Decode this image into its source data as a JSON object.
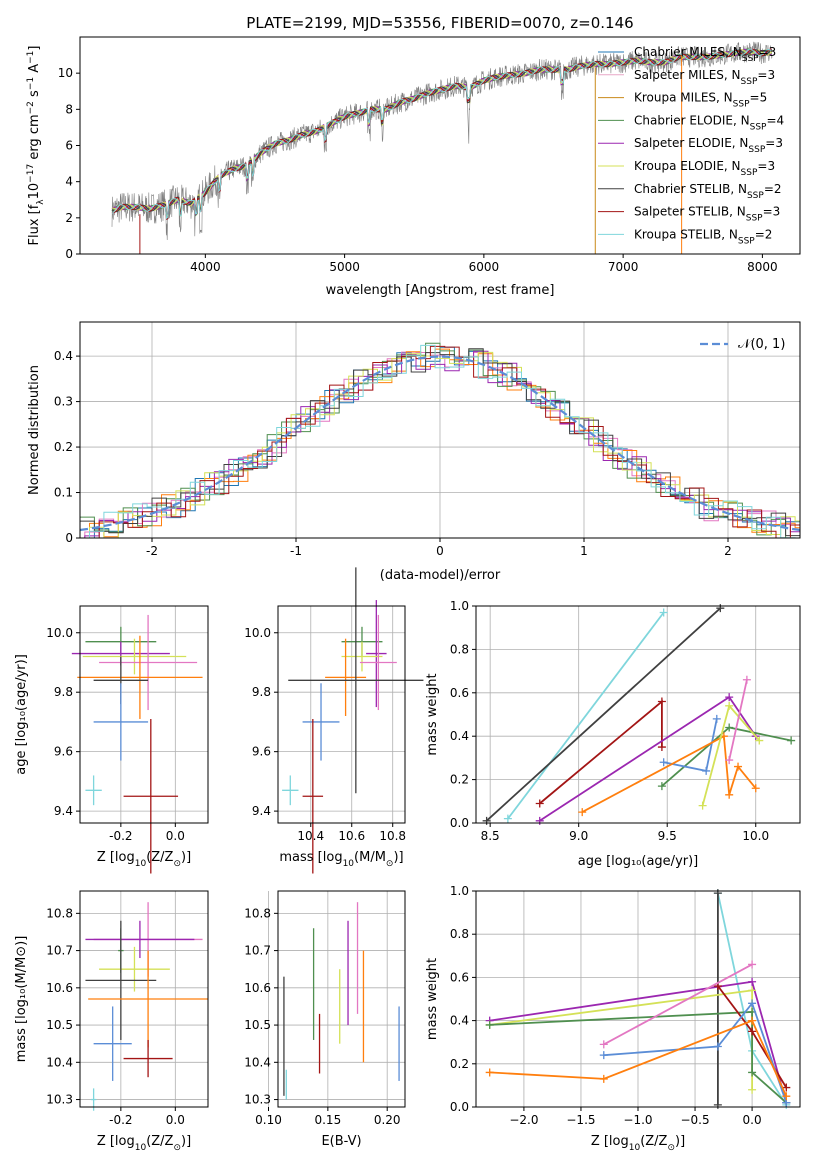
{
  "chart_data": [
    {
      "type": "line",
      "id": "spectrum",
      "title": "PLATE=2199, MJD=53556, FIBERID=0070, z=0.146",
      "xlabel": "wavelength [Angstrom, rest frame]",
      "ylabel_pre": "Flux [f",
      "ylabel_sub": "λ",
      "ylabel_mid": "10",
      "ylabel_sup": "−17",
      "ylabel_post": " erg cm",
      "ylabel_sup2": "−2",
      "ylabel_tail": " s",
      "ylabel_sup3": "−1",
      "ylabel_end": " A",
      "ylabel_sup4": "−1",
      "ylabel_close": "]",
      "xlim": [
        3100,
        8270
      ],
      "ylim": [
        0,
        12
      ],
      "xticks": [
        4000,
        5000,
        6000,
        7000,
        8000
      ],
      "yticks": [
        0,
        2,
        4,
        6,
        8,
        10
      ],
      "legend_placement": "top-right",
      "observed_color": "#7f7f7f",
      "continuum": [
        [
          3330,
          2.4
        ],
        [
          3400,
          2.6
        ],
        [
          3500,
          2.6
        ],
        [
          3600,
          2.5
        ],
        [
          3700,
          2.7
        ],
        [
          3800,
          3.0
        ],
        [
          3900,
          2.8
        ],
        [
          4000,
          3.4
        ],
        [
          4100,
          4.3
        ],
        [
          4200,
          4.7
        ],
        [
          4300,
          4.9
        ],
        [
          4400,
          5.6
        ],
        [
          4500,
          6.1
        ],
        [
          4600,
          6.3
        ],
        [
          4700,
          6.6
        ],
        [
          4800,
          6.8
        ],
        [
          4900,
          7.2
        ],
        [
          5000,
          7.6
        ],
        [
          5100,
          7.8
        ],
        [
          5200,
          8.0
        ],
        [
          5300,
          8.0
        ],
        [
          5400,
          8.4
        ],
        [
          5500,
          8.6
        ],
        [
          5600,
          8.9
        ],
        [
          5700,
          9.1
        ],
        [
          5800,
          9.3
        ],
        [
          5900,
          9.2
        ],
        [
          6000,
          9.6
        ],
        [
          6100,
          9.8
        ],
        [
          6200,
          9.9
        ],
        [
          6300,
          10.0
        ],
        [
          6400,
          10.2
        ],
        [
          6500,
          10.2
        ],
        [
          6600,
          10.2
        ],
        [
          6700,
          10.4
        ],
        [
          6800,
          10.5
        ],
        [
          6900,
          10.5
        ],
        [
          7000,
          10.6
        ],
        [
          7100,
          10.7
        ],
        [
          7200,
          10.6
        ],
        [
          7300,
          10.6
        ],
        [
          7400,
          10.9
        ],
        [
          7500,
          10.9
        ],
        [
          7600,
          10.9
        ],
        [
          7700,
          11.0
        ],
        [
          7800,
          11.1
        ],
        [
          7900,
          11.2
        ],
        [
          8000,
          11.1
        ],
        [
          8070,
          11.2
        ]
      ],
      "series": [
        {
          "name_a": "Chabrier MILES, N",
          "name_sub": "SSP",
          "name_b": "=3",
          "color": "#1f77b4"
        },
        {
          "name_a": "Salpeter MILES, N",
          "name_sub": "SSP",
          "name_b": "=3",
          "color": "#e8a7c7"
        },
        {
          "name_a": "Kroupa MILES, N",
          "name_sub": "SSP",
          "name_b": "=5",
          "color": "#c98a1a"
        },
        {
          "name_a": "Chabrier ELODIE, N",
          "name_sub": "SSP",
          "name_b": "=4",
          "color": "#4f8f4f"
        },
        {
          "name_a": "Salpeter ELODIE, N",
          "name_sub": "SSP",
          "name_b": "=3",
          "color": "#9b27b0"
        },
        {
          "name_a": "Kroupa ELODIE, N",
          "name_sub": "SSP",
          "name_b": "=3",
          "color": "#d4e157"
        },
        {
          "name_a": "Chabrier STELIB, N",
          "name_sub": "SSP",
          "name_b": "=2",
          "color": "#404040"
        },
        {
          "name_a": "Salpeter STELIB, N",
          "name_sub": "SSP",
          "name_b": "=3",
          "color": "#a31515"
        },
        {
          "name_a": "Kroupa STELIB, N",
          "name_sub": "SSP",
          "name_b": "=2",
          "color": "#7fd6dc"
        }
      ]
    },
    {
      "type": "line",
      "id": "residuals",
      "xlabel": "(data-model)/error",
      "ylabel": "Normed distribution",
      "xlim": [
        -2.5,
        2.5
      ],
      "ylim": [
        0,
        0.475
      ],
      "xticks": [
        -2,
        -1,
        0,
        1,
        2
      ],
      "yticks": [
        0.0,
        0.1,
        0.2,
        0.3,
        0.4
      ],
      "grid": true,
      "legend_placement": "top-right",
      "gaussian_label": "𝒩(0, 1)",
      "gaussian_color": "#5b8dd6",
      "histogram_colors": [
        "#1f77b4",
        "#e377c2",
        "#ff7f0e",
        "#4f8f4f",
        "#9b27b0",
        "#d4e157",
        "#404040",
        "#a31515",
        "#7fd6dc"
      ]
    },
    {
      "type": "scatter",
      "id": "z-age",
      "xlabel": "Z [log",
      "xlabel_sub": "10",
      "xlabel_tail": "(Z/Z",
      "xlabel_sub2": "⊙",
      "xlabel_close": ")]",
      "ylabel": "age  [log₁₀(age/yr)]",
      "xlim": [
        -0.35,
        0.12
      ],
      "ylim": [
        9.36,
        10.09
      ],
      "xticks": [
        "-0.2",
        "0.0"
      ],
      "yticks": [
        "9.4",
        "9.6",
        "9.8",
        "10.0"
      ],
      "points": [
        {
          "x": -0.2,
          "y": 9.97,
          "xerr": 0.13,
          "yerr": 0.05,
          "color": "#4f8f4f"
        },
        {
          "x": -0.2,
          "y": 9.93,
          "xerr": 0.18,
          "yerr": 0.04,
          "color": "#9b27b0"
        },
        {
          "x": -0.15,
          "y": 9.92,
          "xerr": 0.19,
          "yerr": 0.06,
          "color": "#d4e157"
        },
        {
          "x": -0.1,
          "y": 9.9,
          "xerr": 0.18,
          "yerr": 0.16,
          "color": "#e377c2"
        },
        {
          "x": -0.13,
          "y": 9.85,
          "xerr": 0.23,
          "yerr": 0.14,
          "color": "#ff7f0e"
        },
        {
          "x": -0.2,
          "y": 9.84,
          "xerr": 0.1,
          "yerr": 0.08,
          "color": "#404040"
        },
        {
          "x": -0.2,
          "y": 9.7,
          "xerr": 0.1,
          "yerr": 0.13,
          "color": "#5b8dd6"
        },
        {
          "x": -0.09,
          "y": 9.45,
          "xerr": 0.1,
          "yerr": 0.26,
          "color": "#a31515"
        },
        {
          "x": -0.3,
          "y": 9.47,
          "xerr": 0.03,
          "yerr": 0.05,
          "color": "#7fd6dc"
        }
      ]
    },
    {
      "type": "scatter",
      "id": "mass-age",
      "xlabel": "mass [log",
      "xlabel_sub": "10",
      "xlabel_tail": "(M/M",
      "xlabel_sub2": "⊙",
      "xlabel_close": ")]",
      "xlim": [
        10.24,
        10.86
      ],
      "ylim": [
        9.36,
        10.09
      ],
      "xticks": [
        "10.4",
        "10.6",
        "10.8"
      ],
      "yticks": [
        "9.4",
        "9.6",
        "9.8",
        "10.0"
      ],
      "points": [
        {
          "x": 10.65,
          "y": 9.97,
          "xerr": 0.1,
          "yerr": 0.05,
          "color": "#4f8f4f"
        },
        {
          "x": 10.72,
          "y": 9.93,
          "xerr": 0.05,
          "yerr": 0.18,
          "color": "#9b27b0"
        },
        {
          "x": 10.65,
          "y": 9.92,
          "xerr": 0.1,
          "yerr": 0.05,
          "color": "#d4e157"
        },
        {
          "x": 10.73,
          "y": 9.9,
          "xerr": 0.09,
          "yerr": 0.16,
          "color": "#e377c2"
        },
        {
          "x": 10.57,
          "y": 9.85,
          "xerr": 0.1,
          "yerr": 0.13,
          "color": "#ff7f0e"
        },
        {
          "x": 10.62,
          "y": 9.84,
          "xerr": 0.33,
          "yerr": 0.38,
          "color": "#404040"
        },
        {
          "x": 10.45,
          "y": 9.7,
          "xerr": 0.09,
          "yerr": 0.13,
          "color": "#5b8dd6"
        },
        {
          "x": 10.41,
          "y": 9.45,
          "xerr": 0.05,
          "yerr": 0.26,
          "color": "#a31515"
        },
        {
          "x": 10.3,
          "y": 9.47,
          "xerr": 0.04,
          "yerr": 0.05,
          "color": "#7fd6dc"
        }
      ]
    },
    {
      "type": "line",
      "id": "age-weight",
      "xlabel": "age  [log₁₀(age/yr)]",
      "ylabel": "mass weight",
      "xlim": [
        8.42,
        10.25
      ],
      "ylim": [
        0,
        1
      ],
      "xticks": [
        "8.5",
        "9.0",
        "9.5",
        "10.0"
      ],
      "yticks": [
        "0.0",
        "0.2",
        "0.4",
        "0.6",
        "0.8",
        "1.0"
      ],
      "grid": true,
      "series": [
        {
          "color": "#7fd6dc",
          "points": [
            [
              8.6,
              0.02
            ],
            [
              9.48,
              0.97
            ]
          ]
        },
        {
          "color": "#404040",
          "points": [
            [
              8.48,
              0.01
            ],
            [
              9.8,
              0.99
            ]
          ]
        },
        {
          "color": "#a31515",
          "points": [
            [
              8.78,
              0.09
            ],
            [
              9.47,
              0.56
            ],
            [
              9.47,
              0.35
            ]
          ]
        },
        {
          "color": "#9b27b0",
          "points": [
            [
              8.78,
              0.01
            ],
            [
              9.85,
              0.58
            ],
            [
              10.0,
              0.4
            ]
          ]
        },
        {
          "color": "#4f8f4f",
          "points": [
            [
              9.47,
              0.17
            ],
            [
              9.85,
              0.44
            ],
            [
              10.2,
              0.38
            ]
          ]
        },
        {
          "color": "#5b8dd6",
          "points": [
            [
              9.48,
              0.28
            ],
            [
              9.72,
              0.24
            ],
            [
              9.78,
              0.48
            ]
          ]
        },
        {
          "color": "#ff7f0e",
          "points": [
            [
              9.02,
              0.05
            ],
            [
              9.82,
              0.4
            ],
            [
              9.85,
              0.13
            ],
            [
              9.9,
              0.26
            ],
            [
              10.0,
              0.16
            ]
          ]
        },
        {
          "color": "#d4e157",
          "points": [
            [
              9.7,
              0.08
            ],
            [
              9.85,
              0.54
            ],
            [
              10.02,
              0.38
            ]
          ]
        },
        {
          "color": "#e377c2",
          "points": [
            [
              9.85,
              0.29
            ],
            [
              9.95,
              0.66
            ]
          ]
        }
      ]
    },
    {
      "type": "scatter",
      "id": "z-mass",
      "xlabel": "Z [log",
      "xlabel_sub": "10",
      "xlabel_tail": "(Z/Z",
      "xlabel_sub2": "⊙",
      "xlabel_close": ")]",
      "ylabel": "mass [log₁₀(M/M⊙)]",
      "xlim": [
        -0.35,
        0.12
      ],
      "ylim": [
        10.28,
        10.86
      ],
      "xticks": [
        "-0.2",
        "0.0"
      ],
      "yticks": [
        "10.3",
        "10.4",
        "10.5",
        "10.6",
        "10.7",
        "10.8"
      ],
      "points": [
        {
          "x": -0.1,
          "y": 10.73,
          "xerr": 0.2,
          "yerr": 0.1,
          "color": "#e377c2"
        },
        {
          "x": -0.13,
          "y": 10.73,
          "xerr": 0.2,
          "yerr": 0.05,
          "color": "#9b27b0"
        },
        {
          "x": -0.2,
          "y": 10.7,
          "xerr": 0.01,
          "yerr": 0.06,
          "color": "#4f8f4f"
        },
        {
          "x": -0.15,
          "y": 10.65,
          "xerr": 0.13,
          "yerr": 0.06,
          "color": "#d4e157"
        },
        {
          "x": -0.2,
          "y": 10.62,
          "xerr": 0.13,
          "yerr": 0.16,
          "color": "#404040"
        },
        {
          "x": -0.1,
          "y": 10.57,
          "xerr": 0.22,
          "yerr": 0.13,
          "color": "#ff7f0e"
        },
        {
          "x": -0.23,
          "y": 10.45,
          "xerr": 0.07,
          "yerr": 0.1,
          "color": "#5b8dd6"
        },
        {
          "x": -0.1,
          "y": 10.41,
          "xerr": 0.09,
          "yerr": 0.05,
          "color": "#a31515"
        },
        {
          "x": -0.3,
          "y": 10.3,
          "xerr": 0.01,
          "yerr": 0.03,
          "color": "#7fd6dc"
        }
      ]
    },
    {
      "type": "scatter",
      "id": "ebv-mass",
      "xlabel": "E(B-V)",
      "xlim": [
        0.108,
        0.215
      ],
      "ylim": [
        10.28,
        10.86
      ],
      "xticks": [
        "0.10",
        "0.15",
        "0.20"
      ],
      "yticks": [
        "10.3",
        "10.4",
        "10.5",
        "10.6",
        "10.7",
        "10.8"
      ],
      "points": [
        {
          "x": 0.113,
          "y": 10.47,
          "yerr": 0.16,
          "color": "#404040"
        },
        {
          "x": 0.115,
          "y": 10.34,
          "yerr": 0.04,
          "color": "#7fd6dc"
        },
        {
          "x": 0.138,
          "y": 10.61,
          "yerr": 0.15,
          "color": "#4f8f4f"
        },
        {
          "x": 0.143,
          "y": 10.45,
          "yerr": 0.08,
          "color": "#a31515"
        },
        {
          "x": 0.16,
          "y": 10.55,
          "yerr": 0.1,
          "color": "#d4e157"
        },
        {
          "x": 0.167,
          "y": 10.64,
          "yerr": 0.14,
          "color": "#9b27b0"
        },
        {
          "x": 0.175,
          "y": 10.68,
          "yerr": 0.15,
          "color": "#e377c2"
        },
        {
          "x": 0.18,
          "y": 10.55,
          "yerr": 0.15,
          "color": "#ff7f0e"
        },
        {
          "x": 0.21,
          "y": 10.45,
          "yerr": 0.1,
          "color": "#5b8dd6"
        }
      ]
    },
    {
      "type": "line",
      "id": "z-weight",
      "xlabel": "Z [log",
      "xlabel_sub": "10",
      "xlabel_tail": "(Z/Z",
      "xlabel_sub2": "⊙",
      "xlabel_close": ")]",
      "ylabel": "mass weight",
      "xlim": [
        -2.42,
        0.42
      ],
      "ylim": [
        0,
        1
      ],
      "xticks": [
        "−2.0",
        "−1.5",
        "−1.0",
        "−0.5",
        "0.0"
      ],
      "yticks": [
        "0.0",
        "0.2",
        "0.4",
        "0.6",
        "0.8",
        "1.0"
      ],
      "grid": true,
      "series": [
        {
          "color": "#7fd6dc",
          "points": [
            [
              -0.3,
              0.99
            ],
            [
              0.0,
              0.26
            ],
            [
              0.3,
              0.01
            ]
          ]
        },
        {
          "color": "#404040",
          "points": [
            [
              -0.3,
              0.99
            ],
            [
              -0.3,
              0.01
            ]
          ]
        },
        {
          "color": "#9b27b0",
          "points": [
            [
              -2.3,
              0.4
            ],
            [
              0.0,
              0.58
            ],
            [
              0.3,
              0.02
            ]
          ]
        },
        {
          "color": "#d4e157",
          "points": [
            [
              -2.3,
              0.38
            ],
            [
              0.0,
              0.54
            ],
            [
              0.0,
              0.08
            ]
          ]
        },
        {
          "color": "#4f8f4f",
          "points": [
            [
              -2.3,
              0.38
            ],
            [
              0.0,
              0.44
            ],
            [
              0.0,
              0.16
            ],
            [
              0.3,
              0.02
            ]
          ]
        },
        {
          "color": "#a31515",
          "points": [
            [
              -0.3,
              0.56
            ],
            [
              0.0,
              0.35
            ],
            [
              0.3,
              0.09
            ]
          ]
        },
        {
          "color": "#e377c2",
          "points": [
            [
              -1.3,
              0.29
            ],
            [
              0.0,
              0.66
            ]
          ]
        },
        {
          "color": "#5b8dd6",
          "points": [
            [
              -1.3,
              0.24
            ],
            [
              -0.3,
              0.28
            ],
            [
              0.0,
              0.48
            ],
            [
              0.3,
              0.02
            ]
          ]
        },
        {
          "color": "#ff7f0e",
          "points": [
            [
              -2.3,
              0.16
            ],
            [
              -1.3,
              0.13
            ],
            [
              0.0,
              0.4
            ],
            [
              0.3,
              0.05
            ]
          ]
        }
      ]
    }
  ]
}
